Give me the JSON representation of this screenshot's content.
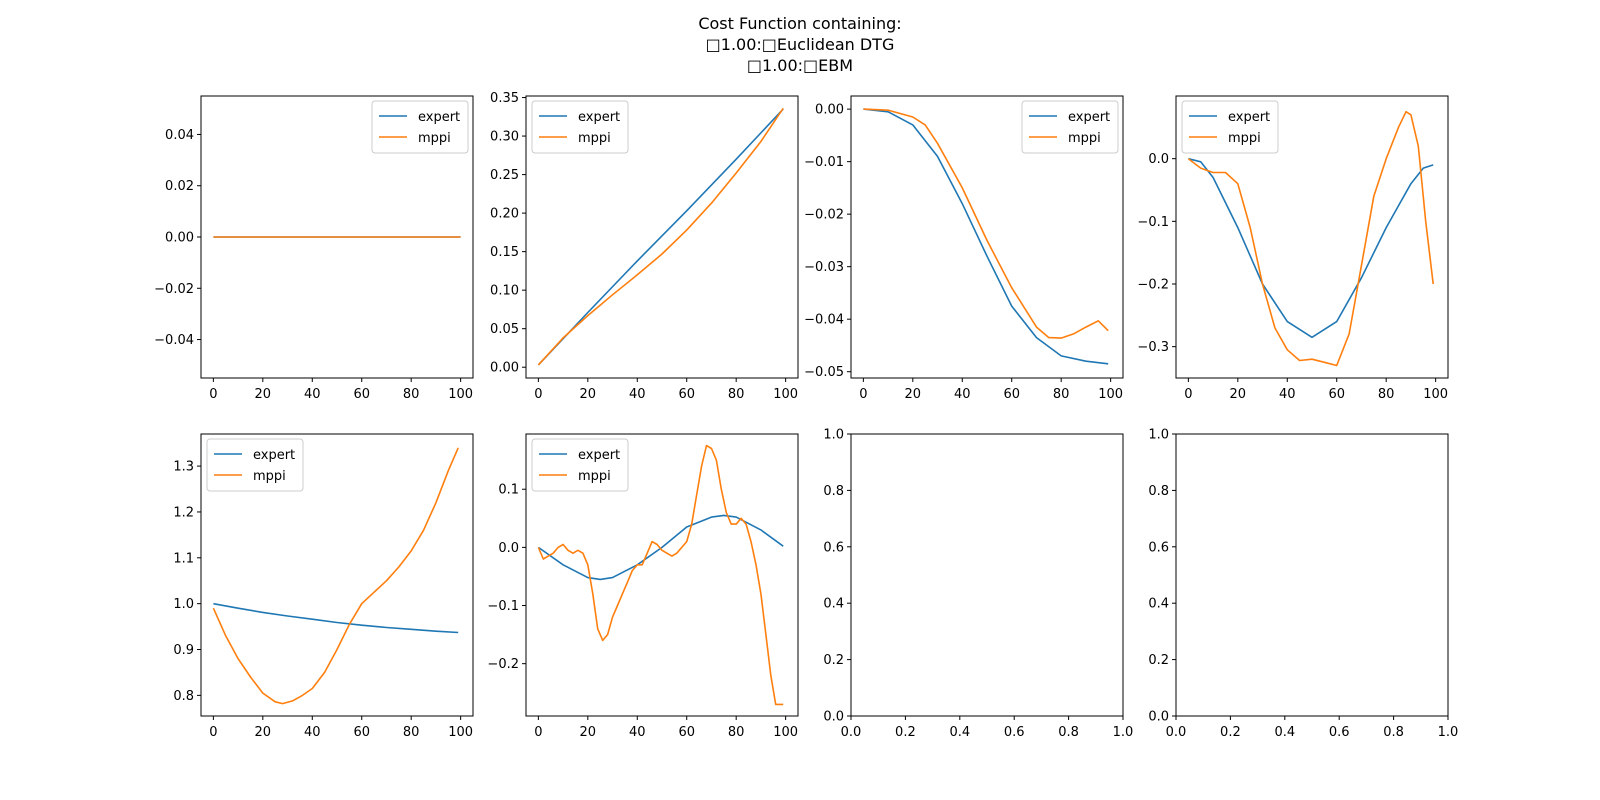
{
  "figure": {
    "title_lines": [
      "Cost Function containing:",
      "□1.00:□Euclidean DTG",
      "□1.00:□EBM"
    ]
  },
  "colors": {
    "expert": "#1f77b4",
    "mppi": "#ff7f0e"
  },
  "chart_data": [
    {
      "type": "line",
      "title": "",
      "xlabel": "",
      "ylabel": "",
      "xlim": [
        -5,
        105
      ],
      "ylim": [
        -0.055,
        0.055
      ],
      "xticks": [
        0,
        20,
        40,
        60,
        80,
        100
      ],
      "yticks": [
        -0.04,
        -0.02,
        0.0,
        0.02,
        0.04
      ],
      "ytick_labels": [
        "−0.04",
        "−0.02",
        "0.00",
        "0.02",
        "0.04"
      ],
      "legend": "upper right",
      "series": [
        {
          "name": "expert",
          "x": [
            0,
            100
          ],
          "y": [
            0.0,
            0.0
          ]
        },
        {
          "name": "mppi",
          "x": [
            0,
            100
          ],
          "y": [
            0.0,
            0.0
          ]
        }
      ]
    },
    {
      "type": "line",
      "title": "",
      "xlabel": "",
      "ylabel": "",
      "xlim": [
        -5,
        105
      ],
      "ylim": [
        -0.014,
        0.352
      ],
      "xticks": [
        0,
        20,
        40,
        60,
        80,
        100
      ],
      "yticks": [
        0.0,
        0.05,
        0.1,
        0.15,
        0.2,
        0.25,
        0.3,
        0.35
      ],
      "ytick_labels": [
        "0.00",
        "0.05",
        "0.10",
        "0.15",
        "0.20",
        "0.25",
        "0.30",
        "0.35"
      ],
      "legend": "upper left",
      "series": [
        {
          "name": "expert",
          "x": [
            0,
            20,
            40,
            60,
            80,
            99
          ],
          "y": [
            0.003,
            0.071,
            0.138,
            0.203,
            0.27,
            0.335
          ]
        },
        {
          "name": "mppi",
          "x": [
            0,
            10,
            20,
            30,
            40,
            50,
            60,
            70,
            80,
            90,
            99
          ],
          "y": [
            0.003,
            0.038,
            0.067,
            0.094,
            0.12,
            0.147,
            0.178,
            0.213,
            0.252,
            0.293,
            0.336
          ]
        }
      ]
    },
    {
      "type": "line",
      "title": "",
      "xlabel": "",
      "ylabel": "",
      "xlim": [
        -5,
        105
      ],
      "ylim": [
        -0.0512,
        0.0025
      ],
      "xticks": [
        0,
        20,
        40,
        60,
        80,
        100
      ],
      "yticks": [
        0.0,
        -0.01,
        -0.02,
        -0.03,
        -0.04,
        -0.05
      ],
      "ytick_labels": [
        "0.00",
        "−0.01",
        "−0.02",
        "−0.03",
        "−0.04",
        "−0.05"
      ],
      "legend": "upper right",
      "series": [
        {
          "name": "expert",
          "x": [
            0,
            10,
            20,
            30,
            40,
            50,
            60,
            70,
            80,
            90,
            99
          ],
          "y": [
            0.0,
            -0.0005,
            -0.003,
            -0.009,
            -0.018,
            -0.028,
            -0.0375,
            -0.0435,
            -0.047,
            -0.048,
            -0.0485
          ]
        },
        {
          "name": "mppi",
          "x": [
            0,
            10,
            20,
            25,
            30,
            40,
            50,
            60,
            70,
            75,
            80,
            85,
            90,
            95,
            99
          ],
          "y": [
            0.0,
            -0.0002,
            -0.0015,
            -0.003,
            -0.0065,
            -0.015,
            -0.025,
            -0.034,
            -0.0415,
            -0.0435,
            -0.0436,
            -0.0428,
            -0.0415,
            -0.0403,
            -0.0422
          ]
        }
      ]
    },
    {
      "type": "line",
      "title": "",
      "xlabel": "",
      "ylabel": "",
      "xlim": [
        -5,
        105
      ],
      "ylim": [
        -0.35,
        0.1
      ],
      "xticks": [
        0,
        20,
        40,
        60,
        80,
        100
      ],
      "yticks": [
        0.0,
        -0.1,
        -0.2,
        -0.3
      ],
      "ytick_labels": [
        "0.0",
        "−0.1",
        "−0.2",
        "−0.3"
      ],
      "legend": "upper left",
      "series": [
        {
          "name": "expert",
          "x": [
            0,
            5,
            10,
            20,
            30,
            40,
            50,
            60,
            70,
            80,
            90,
            95,
            99
          ],
          "y": [
            0.0,
            -0.005,
            -0.03,
            -0.11,
            -0.2,
            -0.26,
            -0.285,
            -0.26,
            -0.19,
            -0.11,
            -0.04,
            -0.015,
            -0.01
          ]
        },
        {
          "name": "mppi",
          "x": [
            0,
            5,
            10,
            15,
            20,
            25,
            30,
            35,
            40,
            45,
            50,
            55,
            60,
            65,
            70,
            75,
            80,
            85,
            88,
            90,
            93,
            96,
            99
          ],
          "y": [
            0.0,
            -0.015,
            -0.022,
            -0.022,
            -0.04,
            -0.11,
            -0.2,
            -0.27,
            -0.305,
            -0.322,
            -0.32,
            -0.325,
            -0.33,
            -0.28,
            -0.17,
            -0.06,
            0.0,
            0.05,
            0.075,
            0.07,
            0.02,
            -0.1,
            -0.2
          ]
        }
      ]
    },
    {
      "type": "line",
      "title": "",
      "xlabel": "",
      "ylabel": "",
      "xlim": [
        -5,
        105
      ],
      "ylim": [
        0.755,
        1.37
      ],
      "xticks": [
        0,
        20,
        40,
        60,
        80,
        100
      ],
      "yticks": [
        0.8,
        0.9,
        1.0,
        1.1,
        1.2,
        1.3
      ],
      "ytick_labels": [
        "0.8",
        "0.9",
        "1.0",
        "1.1",
        "1.2",
        "1.3"
      ],
      "legend": "upper left",
      "series": [
        {
          "name": "expert",
          "x": [
            0,
            10,
            20,
            30,
            40,
            50,
            60,
            70,
            80,
            90,
            99
          ],
          "y": [
            1.0,
            0.99,
            0.981,
            0.973,
            0.966,
            0.959,
            0.953,
            0.948,
            0.944,
            0.94,
            0.937
          ]
        },
        {
          "name": "mppi",
          "x": [
            0,
            5,
            10,
            15,
            20,
            25,
            28,
            32,
            36,
            40,
            45,
            50,
            55,
            60,
            65,
            70,
            75,
            80,
            85,
            90,
            95,
            99
          ],
          "y": [
            0.99,
            0.93,
            0.88,
            0.84,
            0.805,
            0.786,
            0.782,
            0.788,
            0.8,
            0.815,
            0.85,
            0.9,
            0.955,
            1.0,
            1.025,
            1.05,
            1.08,
            1.115,
            1.16,
            1.22,
            1.29,
            1.34
          ]
        }
      ]
    },
    {
      "type": "line",
      "title": "",
      "xlabel": "",
      "ylabel": "",
      "xlim": [
        -5,
        105
      ],
      "ylim": [
        -0.29,
        0.195
      ],
      "xticks": [
        0,
        20,
        40,
        60,
        80,
        100
      ],
      "yticks": [
        -0.2,
        -0.1,
        0.0,
        0.1
      ],
      "ytick_labels": [
        "−0.2",
        "−0.1",
        "0.0",
        "0.1"
      ],
      "legend": "upper left",
      "series": [
        {
          "name": "expert",
          "x": [
            0,
            10,
            20,
            25,
            30,
            40,
            50,
            60,
            70,
            75,
            80,
            90,
            99
          ],
          "y": [
            0.0,
            -0.03,
            -0.052,
            -0.055,
            -0.052,
            -0.03,
            0.0,
            0.035,
            0.052,
            0.055,
            0.052,
            0.03,
            0.002
          ]
        },
        {
          "name": "mppi",
          "x": [
            0,
            2,
            4,
            6,
            8,
            10,
            12,
            14,
            16,
            18,
            20,
            22,
            24,
            26,
            28,
            30,
            32,
            34,
            36,
            38,
            40,
            42,
            44,
            46,
            48,
            50,
            52,
            54,
            56,
            58,
            60,
            62,
            64,
            66,
            68,
            70,
            72,
            74,
            76,
            78,
            80,
            82,
            84,
            86,
            88,
            90,
            92,
            94,
            96,
            99
          ],
          "y": [
            0.0,
            -0.02,
            -0.015,
            -0.01,
            0.0,
            0.005,
            -0.005,
            -0.01,
            -0.005,
            -0.01,
            -0.03,
            -0.08,
            -0.14,
            -0.16,
            -0.15,
            -0.12,
            -0.1,
            -0.08,
            -0.06,
            -0.04,
            -0.03,
            -0.03,
            -0.01,
            0.01,
            0.005,
            -0.005,
            -0.01,
            -0.015,
            -0.01,
            0.0,
            0.01,
            0.04,
            0.09,
            0.14,
            0.175,
            0.17,
            0.15,
            0.1,
            0.06,
            0.04,
            0.04,
            0.05,
            0.04,
            0.01,
            -0.03,
            -0.08,
            -0.15,
            -0.22,
            -0.27,
            -0.27
          ]
        }
      ]
    },
    {
      "type": "line",
      "title": "",
      "xlabel": "",
      "ylabel": "",
      "xlim": [
        0,
        1
      ],
      "ylim": [
        0,
        1
      ],
      "xticks": [
        0.0,
        0.2,
        0.4,
        0.6,
        0.8,
        1.0
      ],
      "xtick_labels": [
        "0.0",
        "0.2",
        "0.4",
        "0.6",
        "0.8",
        "1.0"
      ],
      "yticks": [
        0.0,
        0.2,
        0.4,
        0.6,
        0.8,
        1.0
      ],
      "ytick_labels": [
        "0.0",
        "0.2",
        "0.4",
        "0.6",
        "0.8",
        "1.0"
      ],
      "legend": "none",
      "series": []
    },
    {
      "type": "line",
      "title": "",
      "xlabel": "",
      "ylabel": "",
      "xlim": [
        0,
        1
      ],
      "ylim": [
        0,
        1
      ],
      "xticks": [
        0.0,
        0.2,
        0.4,
        0.6,
        0.8,
        1.0
      ],
      "xtick_labels": [
        "0.0",
        "0.2",
        "0.4",
        "0.6",
        "0.8",
        "1.0"
      ],
      "yticks": [
        0.0,
        0.2,
        0.4,
        0.6,
        0.8,
        1.0
      ],
      "ytick_labels": [
        "0.0",
        "0.2",
        "0.4",
        "0.6",
        "0.8",
        "1.0"
      ],
      "legend": "none",
      "series": []
    }
  ]
}
